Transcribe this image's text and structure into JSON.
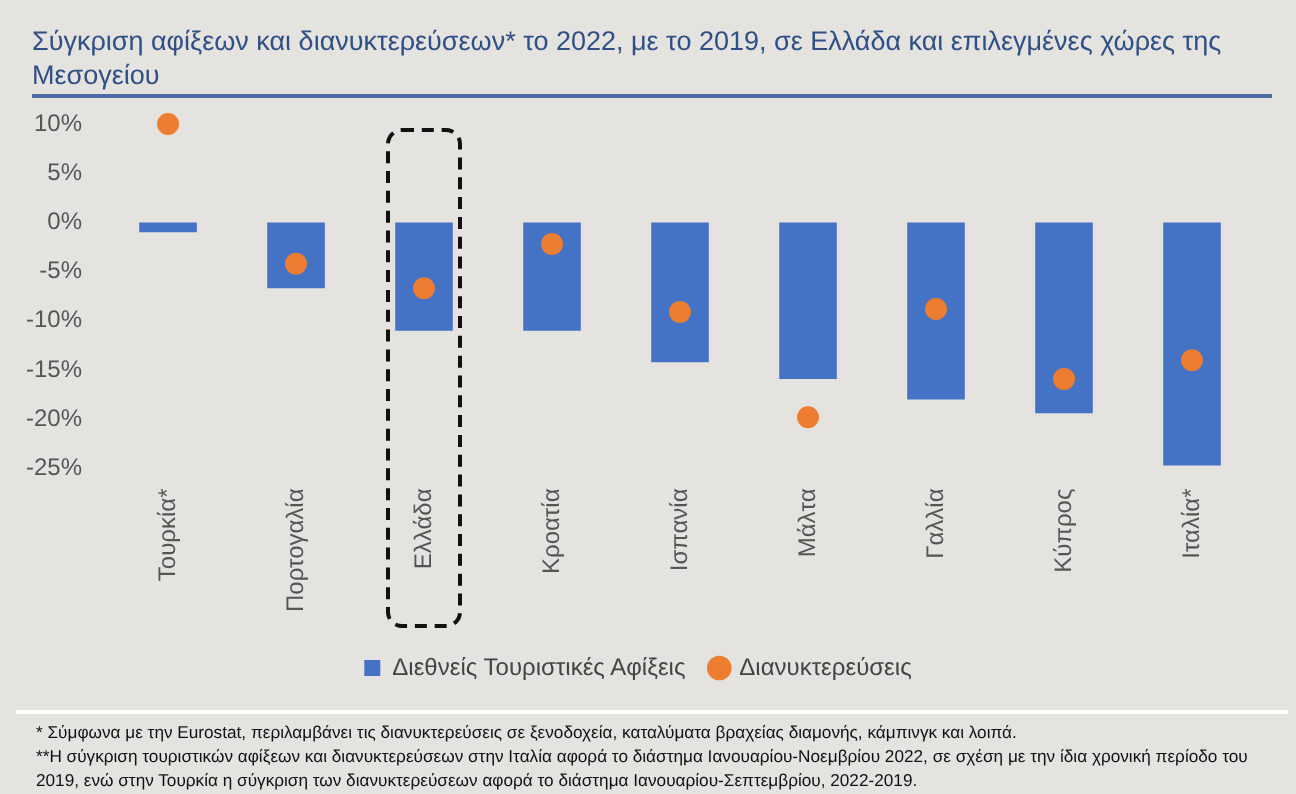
{
  "chart_data": {
    "type": "bar",
    "title": "Σύγκριση αφίξεων και διανυκτερεύσεων* το 2022, με το 2019, σε Ελλάδα και επιλεγμένες χώρες της Μεσογείου",
    "categories": [
      "Τουρκία*",
      "Πορτογαλία",
      "Ελλάδα",
      "Κροατία",
      "Ισπανία",
      "Μάλτα",
      "Γαλλία",
      "Κύπρος",
      "Ιταλία*"
    ],
    "series": [
      {
        "name": "Διεθνείς Τουριστικές Αφίξεις",
        "color": "#4472c4",
        "values": [
          -1,
          -6.7,
          -11,
          -11,
          -14.2,
          -15.9,
          -18,
          -19.4,
          -24.7
        ]
      },
      {
        "name": "Διανυκτερεύσεις",
        "type": "scatter",
        "color": "#ed7d31",
        "marker": "circle",
        "values": [
          10,
          -4.2,
          -6.7,
          -2.2,
          -9.1,
          -19.8,
          -8.8,
          -15.9,
          -14
        ]
      }
    ],
    "ylim": [
      -25,
      10
    ],
    "yticks": [
      {
        "value": 10,
        "label": "10%"
      },
      {
        "value": 5,
        "label": "5%"
      },
      {
        "value": 0,
        "label": "0%"
      },
      {
        "value": -5,
        "label": "-5%"
      },
      {
        "value": -10,
        "label": "-10%"
      },
      {
        "value": -15,
        "label": "-15%"
      },
      {
        "value": -20,
        "label": "-20%"
      },
      {
        "value": -25,
        "label": "-25%"
      }
    ],
    "grid": false,
    "legend": "bottom",
    "annotations": [
      "* Σύμφωνα με την Eurostat, περιλαμβάνει τις διανυκτερεύσεις σε ξενοδοχεία, καταλύματα βραχείας διαμονής, κάμπινγκ και λοιπά.",
      "**Η σύγκριση τουριστικών αφίξεων και διανυκτερεύσεων στην Ιταλία αφορά το διάστημα Ιανουαρίου-Νοεμβρίου 2022, σε σχέση με την ίδια χρονική περίοδο του 2019, ενώ στην Τουρκία η σύγκριση των διανυκτερεύσεων αφορά το διάστημα Ιανουαρίου-Σεπτεμβρίου, 2022-2019."
    ]
  }
}
